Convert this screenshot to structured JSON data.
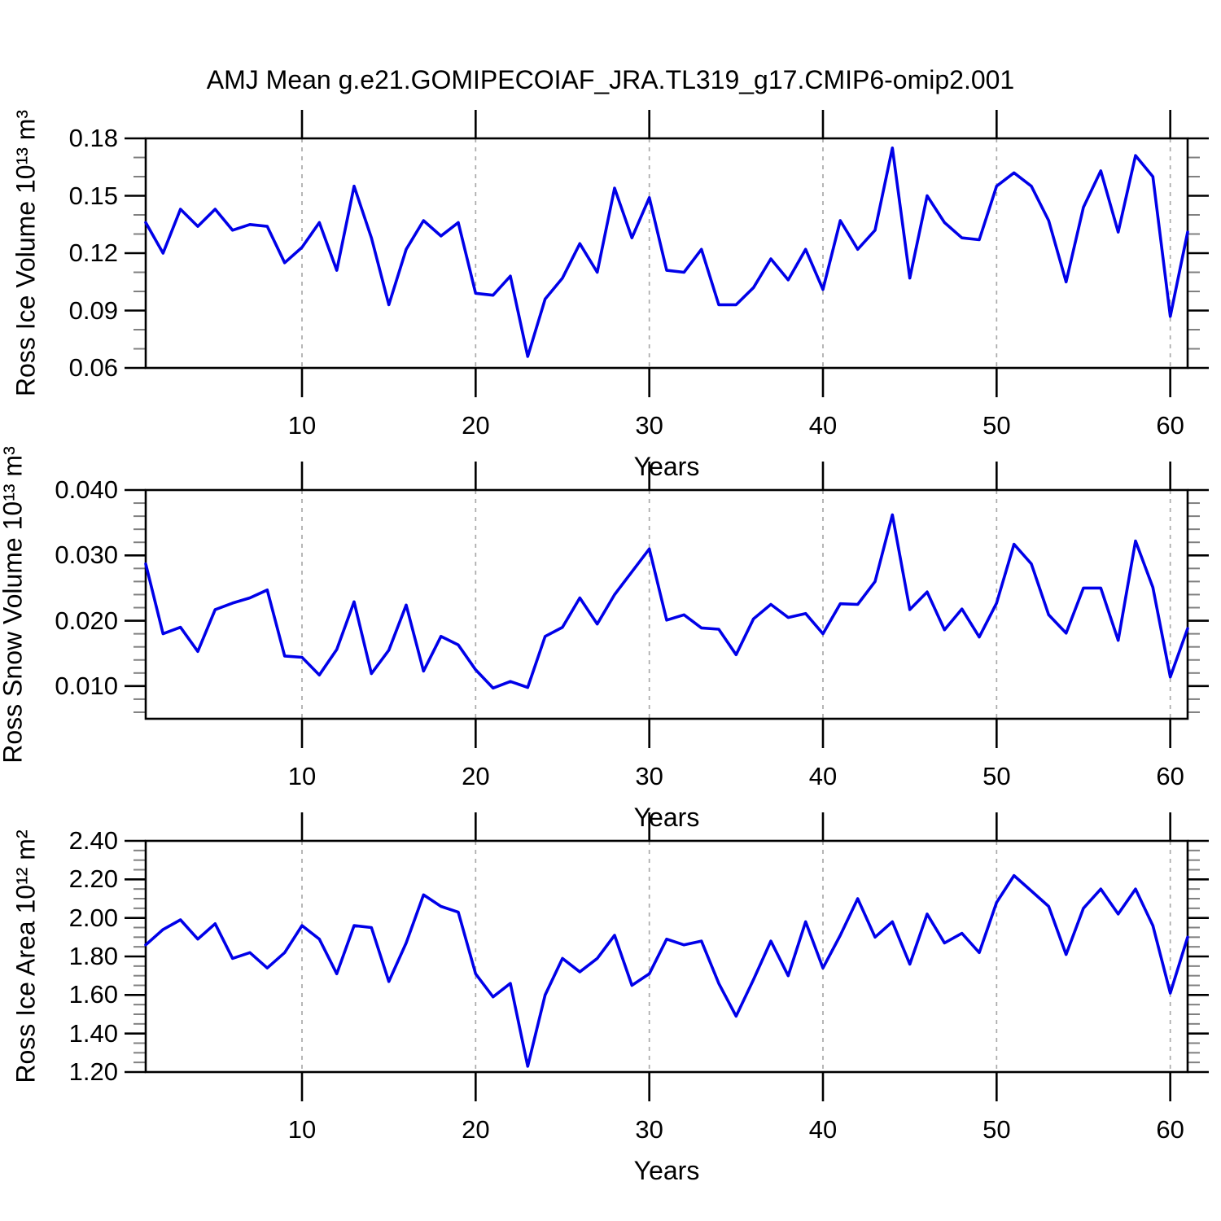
{
  "title": "AMJ Mean g.e21.GOMIPECOIAF_JRA.TL319_g17.CMIP6-omip2.001",
  "colors": {
    "line": "#0000E8",
    "border": "#000000",
    "major_tick": "#000000",
    "minor_tick": "#808080",
    "gridline": "#AAAAAA",
    "background": "#FFFFFF"
  },
  "chart_data": [
    {
      "type": "line",
      "panel": "ross-ice-volume",
      "ylabel": "Ross Ice Volume 10¹³ m³",
      "xlabel": "Years",
      "x": {
        "start": 1,
        "step": 1,
        "end": 61
      },
      "values": [
        0.136,
        0.12,
        0.143,
        0.134,
        0.143,
        0.132,
        0.135,
        0.134,
        0.115,
        0.123,
        0.136,
        0.111,
        0.155,
        0.128,
        0.093,
        0.122,
        0.137,
        0.129,
        0.136,
        0.099,
        0.098,
        0.108,
        0.066,
        0.096,
        0.107,
        0.125,
        0.11,
        0.154,
        0.128,
        0.149,
        0.111,
        0.11,
        0.122,
        0.093,
        0.093,
        0.102,
        0.117,
        0.106,
        0.122,
        0.101,
        0.137,
        0.122,
        0.132,
        0.175,
        0.107,
        0.15,
        0.136,
        0.128,
        0.127,
        0.155,
        0.162,
        0.155,
        0.137,
        0.105,
        0.144,
        0.163,
        0.131,
        0.171,
        0.16,
        0.087,
        0.131
      ],
      "xlim": [
        1,
        61
      ],
      "ylim": [
        0.06,
        0.18
      ],
      "xticks": [
        10,
        20,
        30,
        40,
        50,
        60
      ],
      "xtick_labels": [
        "10",
        "20",
        "30",
        "40",
        "50",
        "60"
      ],
      "minor_x_step": 2,
      "yticks": [
        0.06,
        0.09,
        0.12,
        0.15,
        0.18
      ],
      "ytick_labels": [
        "0.06",
        "0.09",
        "0.12",
        "0.15",
        "0.18"
      ],
      "minor_y_step": 0.01,
      "grid": "vertical-dashed",
      "legend": "none"
    },
    {
      "type": "line",
      "panel": "ross-snow-volume",
      "ylabel": "Ross Snow Volume 10¹³ m³",
      "xlabel": "Years",
      "x": {
        "start": 1,
        "step": 1,
        "end": 61
      },
      "values": [
        0.0287,
        0.018,
        0.019,
        0.0153,
        0.0217,
        0.0227,
        0.0235,
        0.0247,
        0.0146,
        0.0144,
        0.0117,
        0.0156,
        0.0229,
        0.0119,
        0.0155,
        0.0224,
        0.0123,
        0.0176,
        0.0163,
        0.0125,
        0.0097,
        0.0107,
        0.0098,
        0.0176,
        0.019,
        0.0235,
        0.0195,
        0.024,
        0.0275,
        0.031,
        0.0201,
        0.0209,
        0.0189,
        0.0187,
        0.0148,
        0.0203,
        0.0225,
        0.0205,
        0.0211,
        0.018,
        0.0226,
        0.0225,
        0.026,
        0.0362,
        0.0217,
        0.0244,
        0.0186,
        0.0218,
        0.0175,
        0.0227,
        0.0317,
        0.0287,
        0.0209,
        0.0181,
        0.025,
        0.025,
        0.017,
        0.0322,
        0.0251,
        0.0114,
        0.0188
      ],
      "xlim": [
        1,
        61
      ],
      "ylim": [
        0.005,
        0.04
      ],
      "xticks": [
        10,
        20,
        30,
        40,
        50,
        60
      ],
      "xtick_labels": [
        "10",
        "20",
        "30",
        "40",
        "50",
        "60"
      ],
      "minor_x_step": 2,
      "yticks": [
        0.01,
        0.02,
        0.03,
        0.04
      ],
      "ytick_labels": [
        "0.010",
        "0.020",
        "0.030",
        "0.040"
      ],
      "minor_y_step": 0.002,
      "grid": "vertical-dashed",
      "legend": "none"
    },
    {
      "type": "line",
      "panel": "ross-ice-area",
      "ylabel": "Ross Ice Area 10¹² m²",
      "xlabel": "Years",
      "x": {
        "start": 1,
        "step": 1,
        "end": 61
      },
      "values": [
        1.86,
        1.94,
        1.99,
        1.89,
        1.97,
        1.79,
        1.82,
        1.74,
        1.82,
        1.96,
        1.89,
        1.71,
        1.96,
        1.95,
        1.67,
        1.87,
        2.12,
        2.06,
        2.03,
        1.71,
        1.59,
        1.66,
        1.23,
        1.6,
        1.79,
        1.72,
        1.79,
        1.91,
        1.65,
        1.71,
        1.89,
        1.86,
        1.88,
        1.66,
        1.49,
        1.68,
        1.88,
        1.7,
        1.98,
        1.74,
        1.91,
        2.1,
        1.9,
        1.98,
        1.76,
        2.02,
        1.87,
        1.92,
        1.82,
        2.08,
        2.22,
        2.14,
        2.06,
        1.81,
        2.05,
        2.15,
        2.02,
        2.15,
        1.96,
        1.61,
        1.9
      ],
      "xlim": [
        1,
        61
      ],
      "ylim": [
        1.2,
        2.4
      ],
      "xticks": [
        10,
        20,
        30,
        40,
        50,
        60
      ],
      "xtick_labels": [
        "10",
        "20",
        "30",
        "40",
        "50",
        "60"
      ],
      "minor_x_step": 2,
      "yticks": [
        1.2,
        1.4,
        1.6,
        1.8,
        2.0,
        2.2,
        2.4
      ],
      "ytick_labels": [
        "1.20",
        "1.40",
        "1.60",
        "1.80",
        "2.00",
        "2.20",
        "2.40"
      ],
      "minor_y_step": 0.05,
      "grid": "vertical-dashed",
      "legend": "none"
    }
  ]
}
